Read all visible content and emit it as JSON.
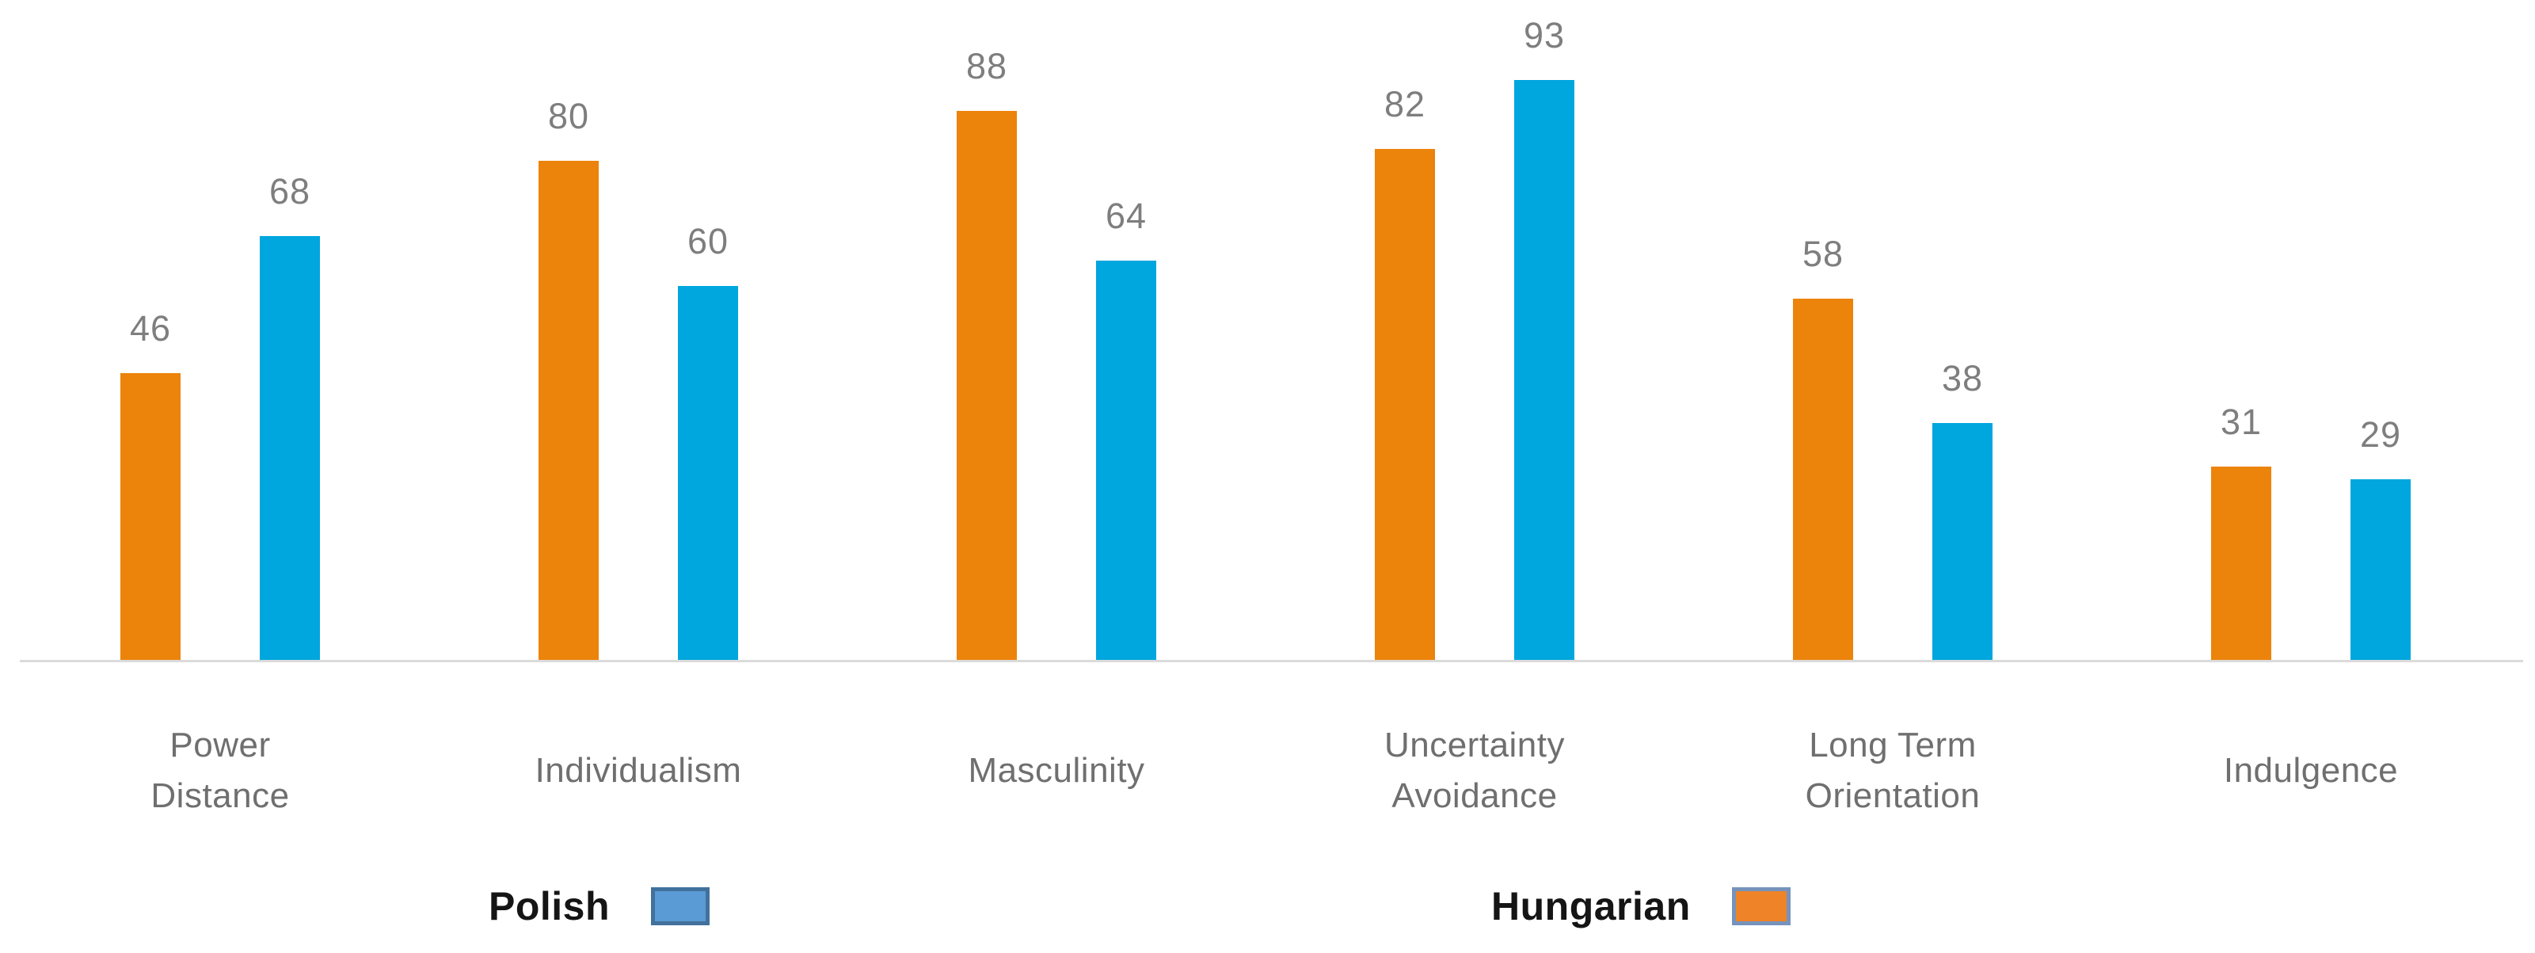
{
  "chart_data": {
    "type": "bar",
    "categories": [
      "Power Distance",
      "Individualism",
      "Masculinity",
      "Uncertainty Avoidance",
      "Long Term Orientation",
      "Indulgence"
    ],
    "category_lines": [
      [
        "Power",
        "Distance"
      ],
      [
        "Individualism"
      ],
      [
        "Masculinity"
      ],
      [
        "Uncertainty",
        "Avoidance"
      ],
      [
        "Long Term",
        "Orientation"
      ],
      [
        "Indulgence"
      ]
    ],
    "series": [
      {
        "name": "Hungarian",
        "color": "#EC830B",
        "values": [
          46,
          80,
          88,
          82,
          58,
          31
        ]
      },
      {
        "name": "Polish",
        "color": "#00A6DE",
        "values": [
          68,
          60,
          64,
          93,
          38,
          29
        ]
      }
    ],
    "value_labels_shown": true,
    "value_label_color": "#7E7E7E",
    "category_label_color": "#6F6F6F",
    "axis_line_color": "#DBDBDB",
    "grid": false,
    "y_axis_visible": false,
    "legend_position": "bottom"
  },
  "legend": {
    "items": [
      {
        "label": "Polish",
        "swatch_fill": "#5B9BD5",
        "swatch_border": "#41719C"
      },
      {
        "label": "Hungarian",
        "swatch_fill": "#EF8327",
        "swatch_border": "#7693BC"
      }
    ]
  }
}
